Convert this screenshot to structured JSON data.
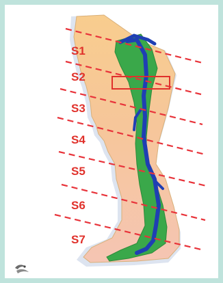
{
  "segments": [
    {
      "id": "s1",
      "label": "S1"
    },
    {
      "id": "s2",
      "label": "S2"
    },
    {
      "id": "s3",
      "label": "S3"
    },
    {
      "id": "s4",
      "label": "S4"
    },
    {
      "id": "s5",
      "label": "S5"
    },
    {
      "id": "s6",
      "label": "S6"
    },
    {
      "id": "s7",
      "label": "S7"
    }
  ],
  "colors": {
    "frame": "#bfe3dc",
    "skin_upper": "#f7c98c",
    "skin_lower": "#f6c7b0",
    "muscle": "#3aa84a",
    "vein": "#1f3fb3",
    "dash": "#e8333a",
    "label": "#e0312b",
    "highlight_box": "#e0312b"
  },
  "icons": {
    "logo": "logo-mark"
  }
}
